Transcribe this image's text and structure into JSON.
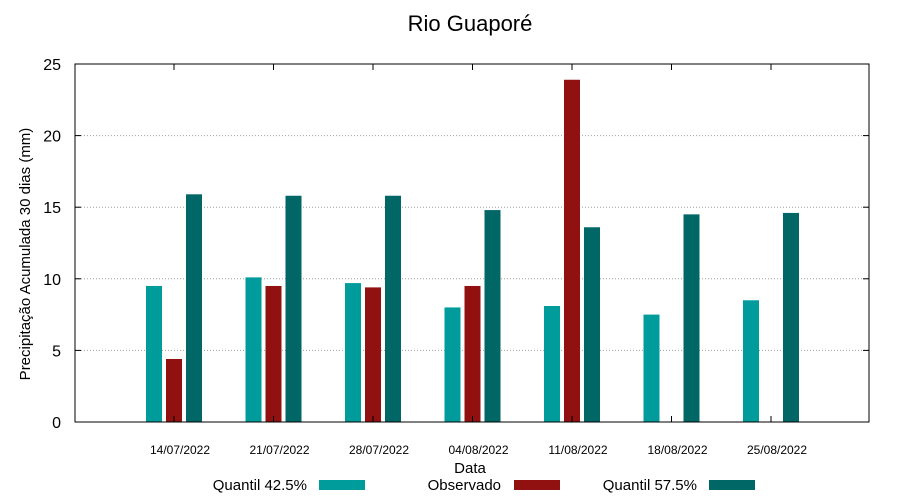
{
  "chart_data": {
    "type": "bar",
    "title": "Rio Guaporé",
    "xlabel": "Data",
    "ylabel": "Precipitação Acumulada 30 dias (mm)",
    "ylim": [
      0,
      25
    ],
    "yticks": [
      0,
      5,
      10,
      15,
      20,
      25
    ],
    "grid": true,
    "legend_position": "bottom",
    "categories": [
      "14/07/2022",
      "21/07/2022",
      "28/07/2022",
      "04/08/2022",
      "11/08/2022",
      "18/08/2022",
      "25/08/2022"
    ],
    "series": [
      {
        "name": "Quantil 42.5%",
        "color": "#009b9b",
        "values": [
          9.5,
          10.1,
          9.7,
          8.0,
          8.1,
          7.5,
          8.5
        ]
      },
      {
        "name": "Observado",
        "color": "#911111",
        "values": [
          4.4,
          9.5,
          9.4,
          9.5,
          23.9,
          null,
          null
        ]
      },
      {
        "name": "Quantil 57.5%",
        "color": "#006666",
        "values": [
          15.9,
          15.8,
          15.8,
          14.8,
          13.6,
          14.5,
          14.6
        ]
      }
    ]
  }
}
